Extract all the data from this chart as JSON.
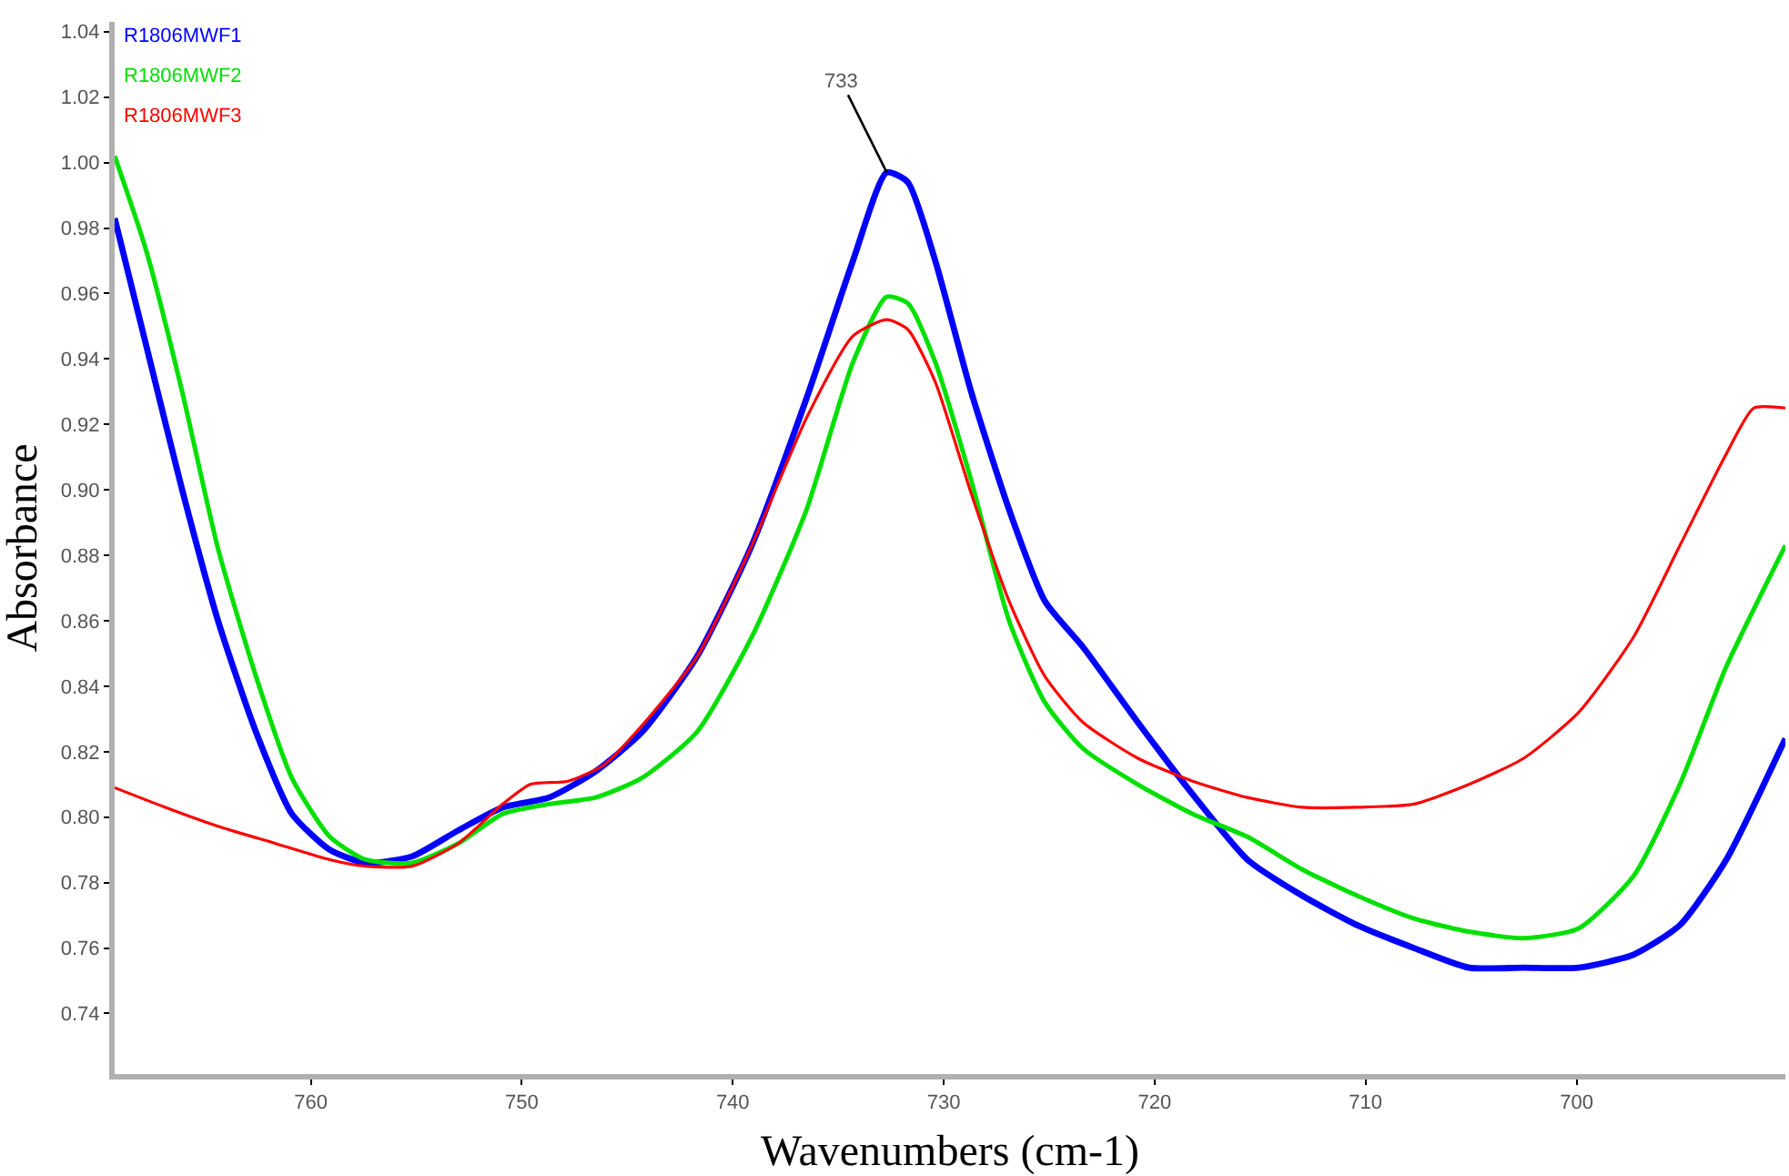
{
  "chart_data": {
    "type": "line",
    "xlabel": "Wavenumbers (cm-1)",
    "ylabel": "Absorbance",
    "xlim": [
      769.3,
      690.1
    ],
    "ylim": [
      0.7215,
      1.043
    ],
    "xticks": [
      760,
      750,
      740,
      730,
      720,
      710,
      700
    ],
    "yticks": [
      {
        "value": 0.74,
        "label": "0.74"
      },
      {
        "value": 0.76,
        "label": "0.76"
      },
      {
        "value": 0.78,
        "label": "0.78"
      },
      {
        "value": 0.8,
        "label": "0.80"
      },
      {
        "value": 0.82,
        "label": "0.82"
      },
      {
        "value": 0.84,
        "label": "0.84"
      },
      {
        "value": 0.86,
        "label": "0.86"
      },
      {
        "value": 0.88,
        "label": "0.88"
      },
      {
        "value": 0.9,
        "label": "0.90"
      },
      {
        "value": 0.92,
        "label": "0.92"
      },
      {
        "value": 0.94,
        "label": "0.94"
      },
      {
        "value": 0.96,
        "label": "0.96"
      },
      {
        "value": 0.98,
        "label": "0.98"
      },
      {
        "value": 1.0,
        "label": "1.00"
      },
      {
        "value": 1.02,
        "label": "1.02"
      },
      {
        "value": 1.04,
        "label": "1.04"
      }
    ],
    "legend": "top left",
    "marker": "none",
    "line_style": "solid",
    "annotations": [
      {
        "text": "733",
        "x": 732.7,
        "y": 0.997
      }
    ],
    "series": [
      {
        "name": "R1806MWF1",
        "color": "#0000ff",
        "x": [
          769.3,
          767.8,
          766.1,
          764.4,
          762.6,
          760.9,
          759.1,
          757.4,
          755.2,
          753.0,
          750.9,
          748.7,
          746.5,
          744.3,
          741.7,
          739.1,
          736.5,
          734.3,
          732.7,
          731.7,
          730.4,
          728.7,
          726.9,
          725.2,
          723.4,
          720.8,
          718.2,
          715.6,
          713.0,
          710.4,
          707.7,
          705.1,
          702.5,
          699.9,
          697.3,
          695.1,
          692.9,
          690.1
        ],
        "values": [
          0.983,
          0.944,
          0.9,
          0.86,
          0.826,
          0.801,
          0.79,
          0.786,
          0.788,
          0.796,
          0.803,
          0.806,
          0.814,
          0.826,
          0.849,
          0.883,
          0.928,
          0.97,
          0.997,
          0.994,
          0.97,
          0.93,
          0.894,
          0.866,
          0.852,
          0.829,
          0.807,
          0.787,
          0.776,
          0.767,
          0.76,
          0.754,
          0.754,
          0.754,
          0.758,
          0.767,
          0.787,
          0.824
        ]
      },
      {
        "name": "R1806MWF2",
        "color": "#00e000",
        "x": [
          769.3,
          767.8,
          766.1,
          764.4,
          762.6,
          760.9,
          759.1,
          757.4,
          755.2,
          753.0,
          750.9,
          748.7,
          746.5,
          744.3,
          741.7,
          739.1,
          736.5,
          734.3,
          732.7,
          731.7,
          730.4,
          728.7,
          726.9,
          725.2,
          723.4,
          720.8,
          718.2,
          715.6,
          713.0,
          710.4,
          707.7,
          705.1,
          702.5,
          699.9,
          697.3,
          695.1,
          692.9,
          690.1
        ],
        "values": [
          1.002,
          0.973,
          0.93,
          0.882,
          0.843,
          0.812,
          0.794,
          0.787,
          0.786,
          0.792,
          0.801,
          0.804,
          0.806,
          0.812,
          0.826,
          0.855,
          0.894,
          0.939,
          0.959,
          0.957,
          0.939,
          0.903,
          0.86,
          0.835,
          0.821,
          0.81,
          0.801,
          0.794,
          0.784,
          0.776,
          0.769,
          0.765,
          0.763,
          0.766,
          0.782,
          0.81,
          0.846,
          0.883
        ]
      },
      {
        "name": "R1806MWF3",
        "color": "#ff0000",
        "x": [
          769.3,
          766.9,
          764.3,
          761.7,
          759.1,
          757.4,
          755.2,
          753.0,
          750.9,
          749.6,
          747.8,
          746.1,
          744.3,
          741.7,
          739.1,
          736.5,
          734.3,
          732.7,
          731.7,
          730.4,
          728.7,
          726.9,
          725.2,
          723.4,
          720.8,
          718.2,
          715.6,
          713.0,
          710.4,
          707.7,
          705.1,
          702.5,
          699.9,
          697.3,
          695.1,
          692.9,
          691.6,
          690.1
        ],
        "values": [
          0.809,
          0.803,
          0.797,
          0.792,
          0.787,
          0.785,
          0.785,
          0.792,
          0.804,
          0.81,
          0.811,
          0.816,
          0.828,
          0.849,
          0.883,
          0.922,
          0.947,
          0.952,
          0.949,
          0.933,
          0.899,
          0.866,
          0.843,
          0.829,
          0.818,
          0.811,
          0.806,
          0.803,
          0.803,
          0.804,
          0.81,
          0.818,
          0.832,
          0.855,
          0.883,
          0.911,
          0.925,
          0.925
        ]
      }
    ]
  }
}
